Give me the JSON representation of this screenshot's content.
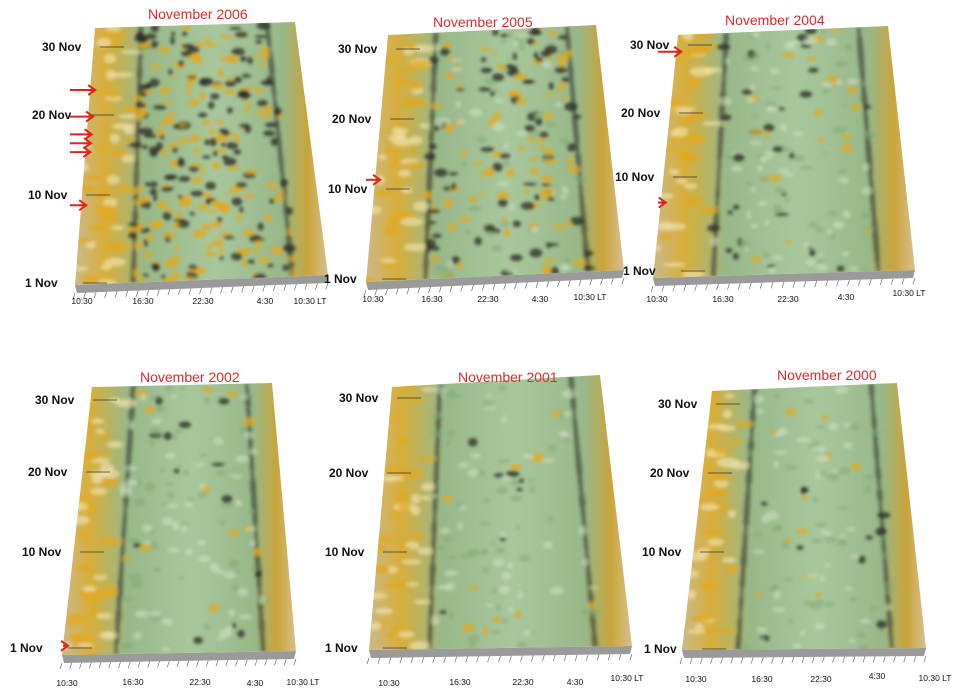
{
  "chart_data": [
    {
      "type": "surface",
      "title": "November 2006",
      "y_ticks": [
        "30 Nov",
        "20 Nov",
        "10 Nov",
        "1 Nov"
      ],
      "x_ticks": [
        "10:30",
        "16:30",
        "22:30",
        "4:30",
        "10:30 LT"
      ],
      "arrow_days": [
        23,
        20,
        18,
        17,
        16,
        10
      ],
      "colors": {
        "base": "#a8c79a",
        "active": "#e0a820",
        "shade": "#222222"
      }
    },
    {
      "type": "surface",
      "title": "November 2005",
      "y_ticks": [
        "30 Nov",
        "20 Nov",
        "10 Nov",
        "1 Nov"
      ],
      "x_ticks": [
        "10:30",
        "16:30",
        "22:30",
        "4:30",
        "10:30 LT"
      ],
      "arrow_days": [
        13
      ],
      "colors": {
        "base": "#a8c79a",
        "active": "#e0a820",
        "shade": "#222222"
      }
    },
    {
      "type": "surface",
      "title": "November 2004",
      "y_ticks": [
        "30 Nov",
        "20 Nov",
        "10 Nov",
        "1 Nov"
      ],
      "x_ticks": [
        "10:30",
        "16:30",
        "22:30",
        "4:30",
        "10:30 LT"
      ],
      "arrow_days": [
        28,
        10
      ],
      "colors": {
        "base": "#a8c79a",
        "active": "#e0a820",
        "shade": "#222222"
      }
    },
    {
      "type": "surface",
      "title": "November 2002",
      "y_ticks": [
        "30 Nov",
        "20 Nov",
        "10 Nov",
        "1 Nov"
      ],
      "x_ticks": [
        "10:30",
        "16:30",
        "22:30",
        "4:30",
        "10:30 LT"
      ],
      "arrow_days": [
        2
      ],
      "colors": {
        "base": "#a8c79a",
        "active": "#e0a820",
        "shade": "#222222"
      }
    },
    {
      "type": "surface",
      "title": "November 2001",
      "y_ticks": [
        "30 Nov",
        "20 Nov",
        "10 Nov",
        "1 Nov"
      ],
      "x_ticks": [
        "10:30",
        "16:30",
        "22:30",
        "4:30",
        "10:30 LT"
      ],
      "arrow_days": [],
      "colors": {
        "base": "#a8c79a",
        "active": "#e0a820",
        "shade": "#222222"
      }
    },
    {
      "type": "surface",
      "title": "November 2000",
      "y_ticks": [
        "30 Nov",
        "20 Nov",
        "10 Nov",
        "1 Nov"
      ],
      "x_ticks": [
        "10:30",
        "16:30",
        "22:30",
        "4:30",
        "10:30 LT"
      ],
      "arrow_days": [],
      "colors": {
        "base": "#a8c79a",
        "active": "#e0a820",
        "shade": "#222222"
      }
    }
  ]
}
